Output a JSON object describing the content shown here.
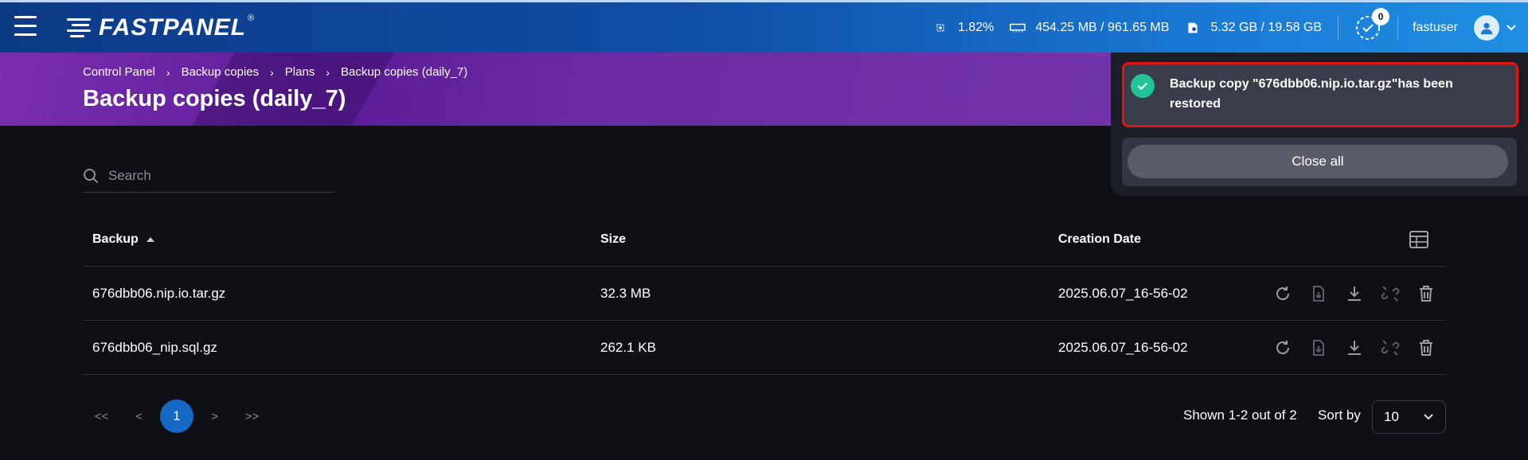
{
  "header": {
    "logo": "FASTPANEL",
    "logo_mark": "®",
    "cpu": "1.82%",
    "ram": "454.25 MB / 961.65 MB",
    "disk": "5.32 GB / 19.58 GB",
    "tasks_badge": "0",
    "username": "fastuser"
  },
  "breadcrumb": [
    "Control Panel",
    "Backup copies",
    "Plans",
    "Backup copies (daily_7)"
  ],
  "page_title": "Backup copies (daily_7)",
  "search": {
    "placeholder": "Search"
  },
  "table": {
    "columns": [
      "Backup",
      "Size",
      "Creation Date"
    ],
    "rows": [
      {
        "name": "676dbb06.nip.io.tar.gz",
        "size": "32.3 MB",
        "date": "2025.06.07_16-56-02"
      },
      {
        "name": "676dbb06_nip.sql.gz",
        "size": "262.1 KB",
        "date": "2025.06.07_16-56-02"
      }
    ]
  },
  "pagination": {
    "first": "<<",
    "prev": "<",
    "current": "1",
    "next": ">",
    "last": ">>"
  },
  "shown": "Shown 1-2 out of 2",
  "sort_by": {
    "label": "Sort by",
    "value": "10"
  },
  "notification": {
    "message": "Backup copy \"676dbb06.nip.io.tar.gz\"has been restored",
    "close_all": "Close all"
  },
  "colors": {
    "accent_blue": "#1568c4",
    "success": "#22c497",
    "highlight": "#e01616"
  }
}
